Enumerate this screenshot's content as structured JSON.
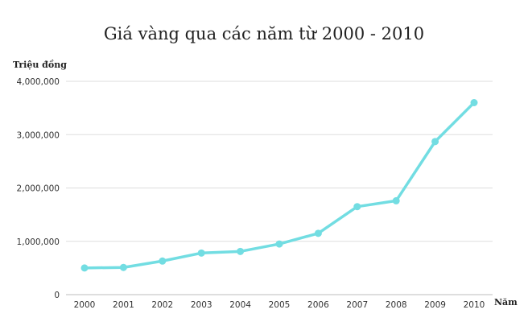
{
  "chart_data": {
    "type": "line",
    "title": "Giá vàng qua các năm từ 2000 - 2010",
    "ylabel": "Triệu đồng",
    "xlabel": "Năm",
    "x": [
      "2000",
      "2001",
      "2002",
      "2003",
      "2004",
      "2005",
      "2006",
      "2007",
      "2008",
      "2009",
      "2010"
    ],
    "series": [
      {
        "values": [
          500000,
          510000,
          630000,
          780000,
          810000,
          950000,
          1150000,
          1650000,
          1760000,
          2870000,
          3600000
        ]
      }
    ],
    "ylim": [
      0,
      4000000
    ],
    "yticks": [
      "0",
      "1,000,000",
      "2,000,000",
      "3,000,000",
      "4,000,000"
    ],
    "grid": true,
    "color": "#72dde2"
  }
}
